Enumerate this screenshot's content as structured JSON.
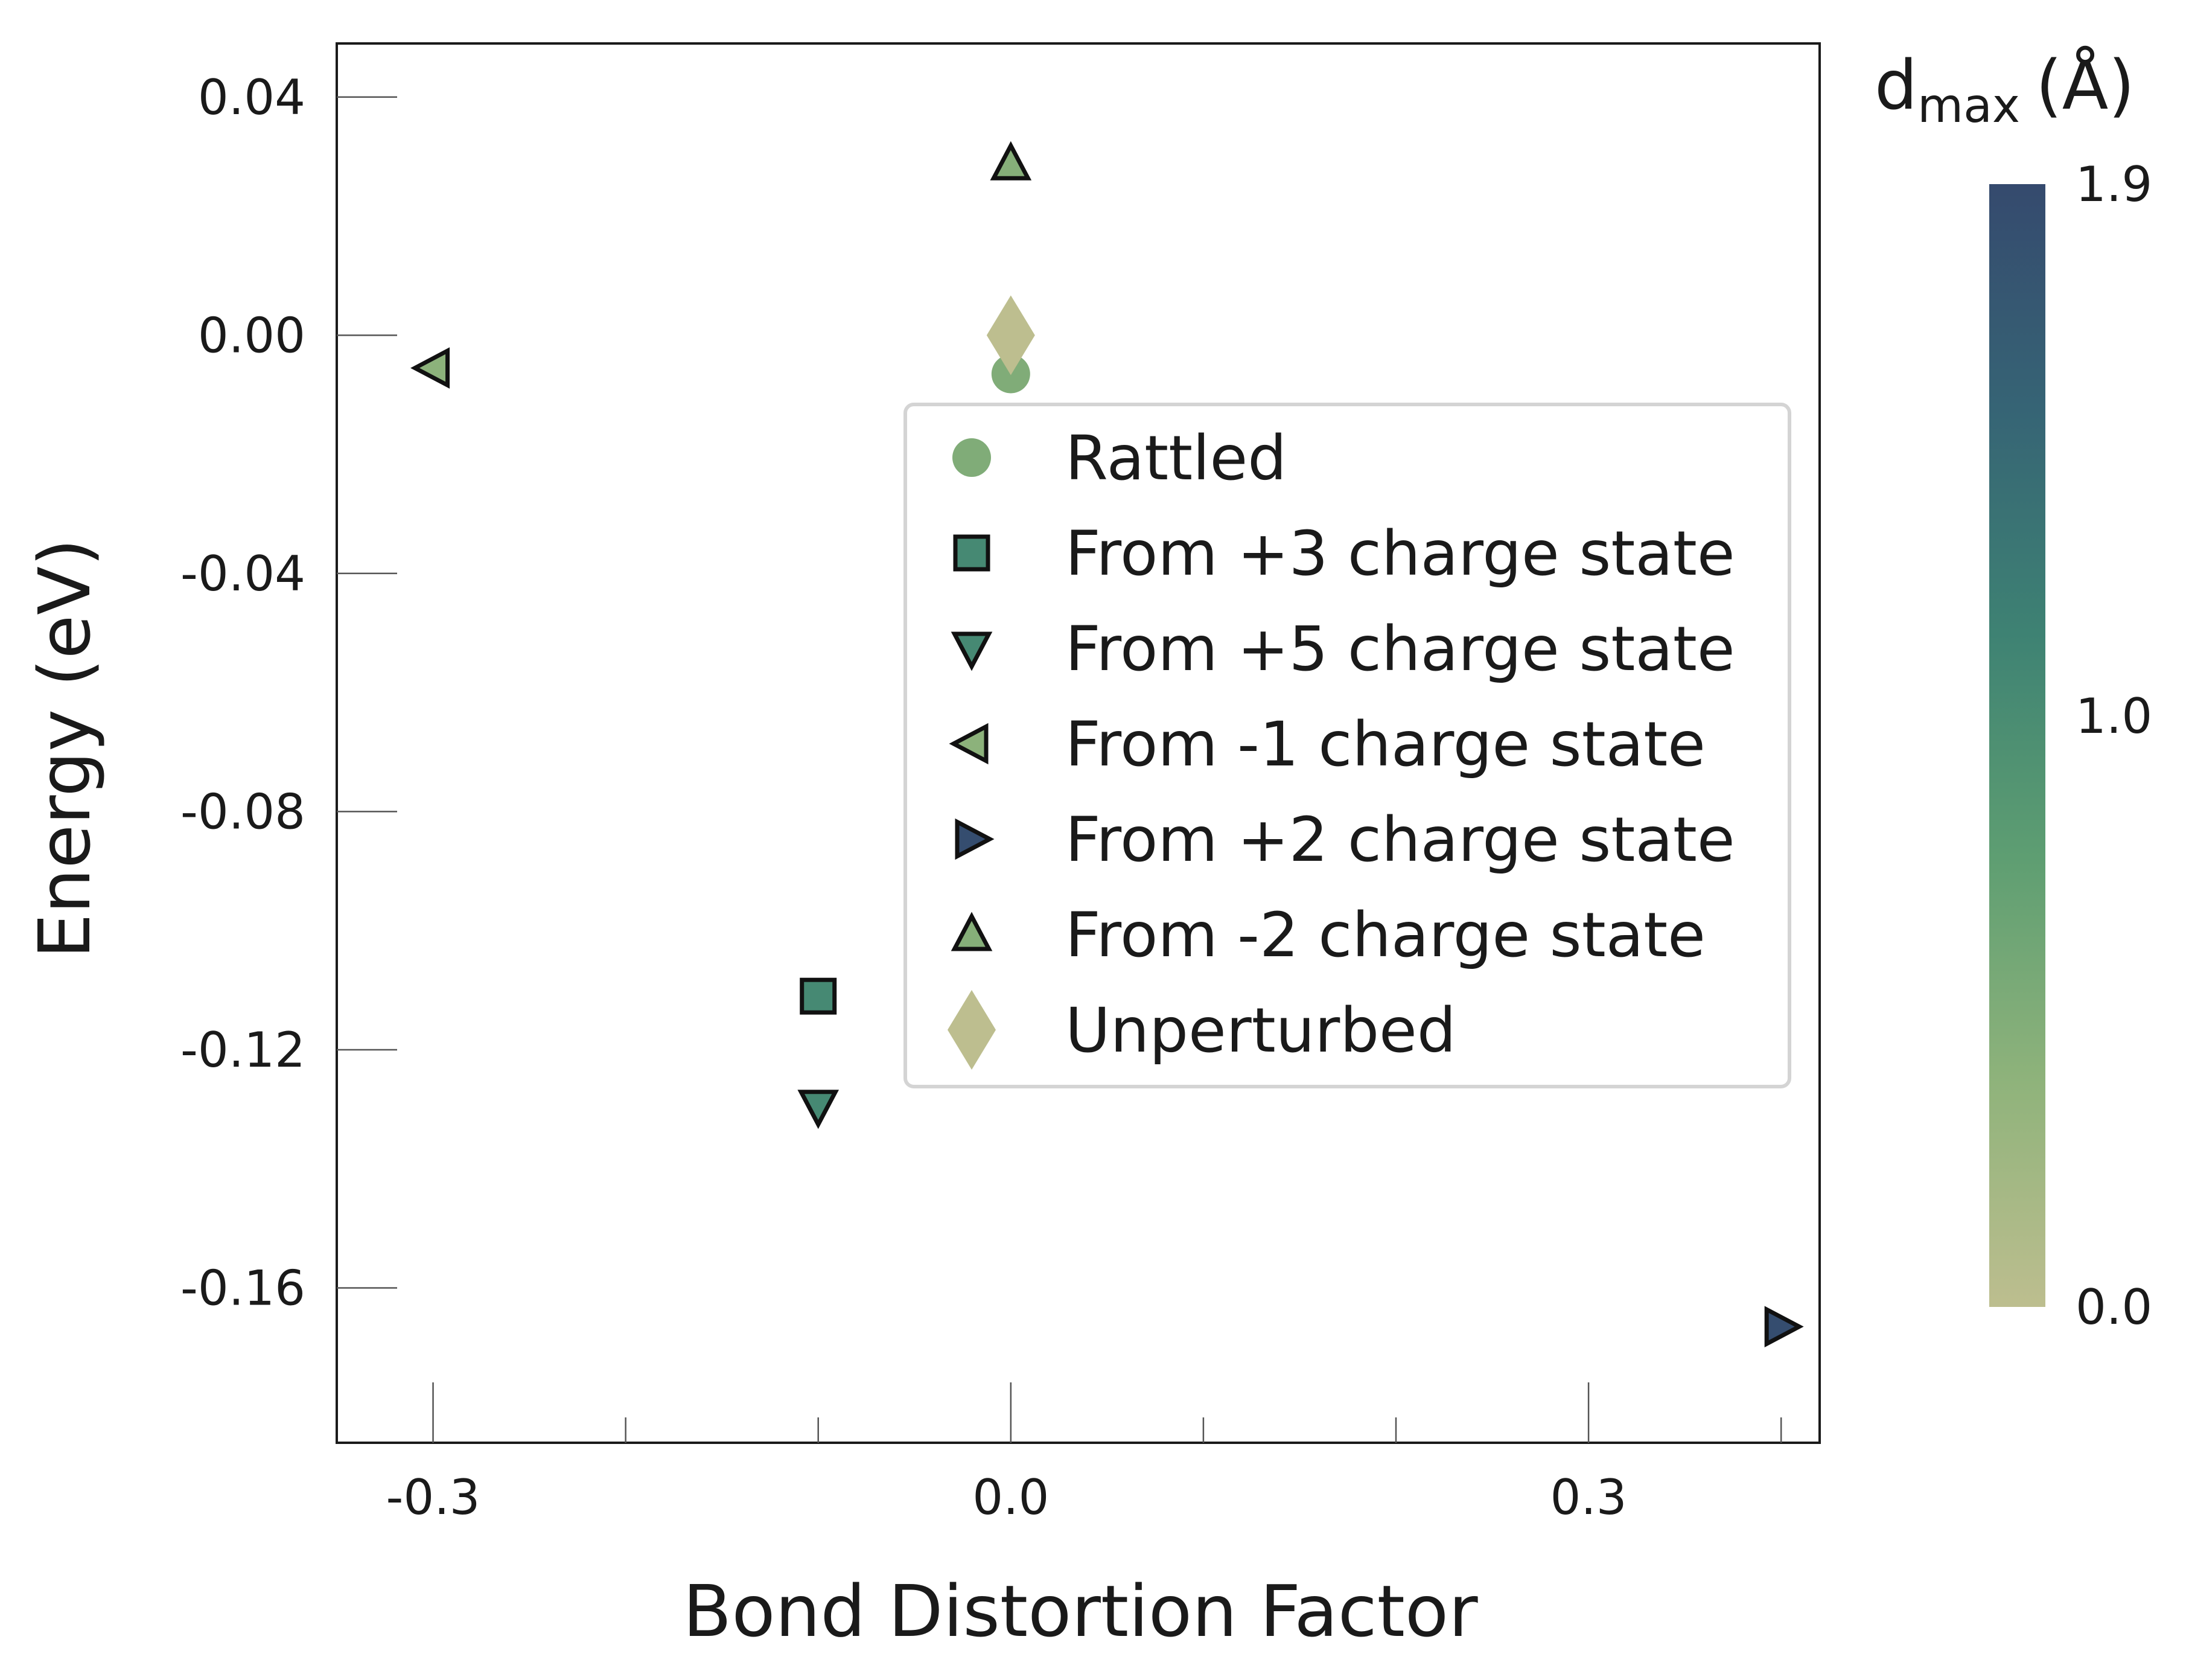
{
  "chart_data": {
    "type": "scatter",
    "xlabel": "Bond Distortion Factor",
    "ylabel": "Energy (eV)",
    "xlim": [
      -0.35,
      0.42
    ],
    "ylim": [
      -0.186,
      0.049
    ],
    "x_ticks": [
      -0.3,
      0.0,
      0.3
    ],
    "x_tick_labels": [
      "-0.3",
      "0.0",
      "0.3"
    ],
    "x_minor_ticks": [
      -0.2,
      -0.1,
      0.1,
      0.2,
      0.4
    ],
    "y_ticks": [
      0.04,
      0.0,
      -0.04,
      -0.08,
      -0.12,
      -0.16
    ],
    "y_tick_labels": [
      "0.04",
      "0.00",
      "-0.04",
      "-0.08",
      "-0.12",
      "-0.16"
    ],
    "grid": false,
    "legend_position": "center-right",
    "series": [
      {
        "name": "Rattled",
        "marker": "circle",
        "points": [
          {
            "x": 0.0,
            "y": -0.0065,
            "dmax": 0.5
          }
        ]
      },
      {
        "name": "From +3 charge state",
        "marker": "square",
        "points": [
          {
            "x": -0.1,
            "y": -0.111,
            "dmax": 1.05
          }
        ]
      },
      {
        "name": "From +5 charge state",
        "marker": "triangle-down",
        "points": [
          {
            "x": -0.1,
            "y": -0.1295,
            "dmax": 1.05
          }
        ]
      },
      {
        "name": "From -1 charge state",
        "marker": "triangle-left",
        "points": [
          {
            "x": -0.3,
            "y": -0.0055,
            "dmax": 0.4
          }
        ]
      },
      {
        "name": "From +2 charge state",
        "marker": "triangle-right",
        "points": [
          {
            "x": 0.4,
            "y": -0.1665,
            "dmax": 1.85
          }
        ]
      },
      {
        "name": "From -2 charge state",
        "marker": "triangle-up",
        "points": [
          {
            "x": 0.0,
            "y": 0.0288,
            "dmax": 0.45
          }
        ]
      },
      {
        "name": "Unperturbed",
        "marker": "diamond",
        "points": [
          {
            "x": 0.0,
            "y": 0.0,
            "dmax": 0.0
          }
        ]
      }
    ],
    "colorbar": {
      "title_main": "d",
      "title_sub": "max",
      "title_unit": "(Å)",
      "min": 0.0,
      "max": 1.9,
      "tick_values": [
        0.0,
        1.0,
        1.9
      ],
      "tick_labels": [
        "0.0",
        "1.0",
        "1.9"
      ],
      "colors": [
        "#bdbe8f",
        "#8fb37b",
        "#5e9e72",
        "#3e8273",
        "#366475",
        "#354a6e"
      ]
    },
    "edge_color": "#111111"
  }
}
